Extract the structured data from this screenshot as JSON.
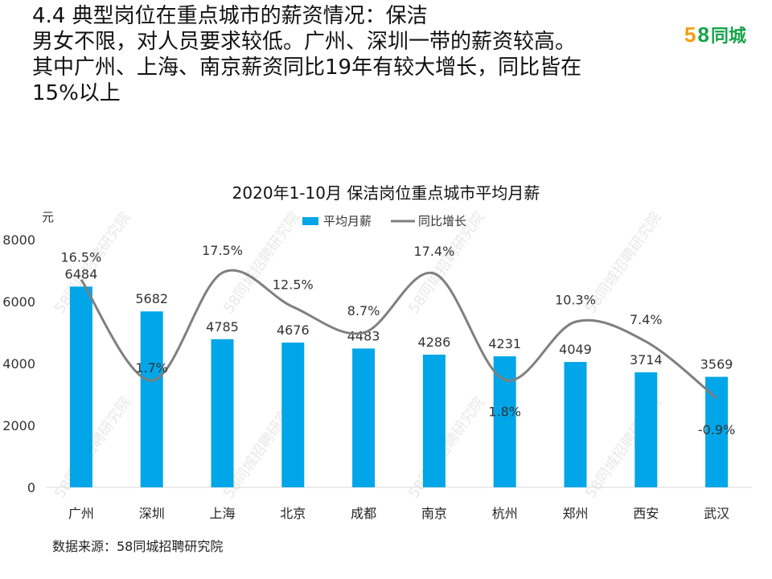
{
  "headline": {
    "lines": [
      "4.4 典型岗位在重点城市的薪资情况：保洁",
      "男女不限，对人员要求较低。广州、深圳一带的薪资较高。",
      "其中广州、上海、南京薪资同比19年有较大增长，同比皆在",
      "15%以上"
    ]
  },
  "logo": {
    "num5": "5",
    "num8": "8",
    "name": "同城",
    "color5": "#f59e0b",
    "color8": "#16a34a"
  },
  "source": "数据来源：58同城招聘研究院",
  "watermark": "58同城招聘研究院",
  "colors": {
    "bar": "#00a6e8",
    "line": "#7f7f7f",
    "axis": "#d9d9d9"
  },
  "chart_data": {
    "type": "bar",
    "title": "2020年1-10月 保洁岗位重点城市平均月薪",
    "ylabel": "元",
    "ylim": [
      0,
      8000
    ],
    "yticks": [
      "0",
      "2000",
      "4000",
      "6000",
      "8000"
    ],
    "categories": [
      "广州",
      "深圳",
      "上海",
      "北京",
      "成都",
      "南京",
      "杭州",
      "郑州",
      "西安",
      "武汉"
    ],
    "series": [
      {
        "name": "平均月薪",
        "kind": "bar",
        "values": [
          6484,
          5682,
          4785,
          4676,
          4483,
          4286,
          4231,
          4049,
          3714,
          3569
        ]
      },
      {
        "name": "同比增长",
        "kind": "line",
        "values": [
          16.5,
          1.7,
          17.5,
          12.5,
          8.7,
          17.4,
          1.8,
          10.3,
          7.4,
          -0.9
        ],
        "labels": [
          "16.5%",
          "1.7%",
          "17.5%",
          "12.5%",
          "8.7%",
          "17.4%",
          "1.8%",
          "10.3%",
          "7.4%",
          "-0.9%"
        ]
      }
    ],
    "legend": [
      "平均月薪",
      "同比增长"
    ]
  }
}
